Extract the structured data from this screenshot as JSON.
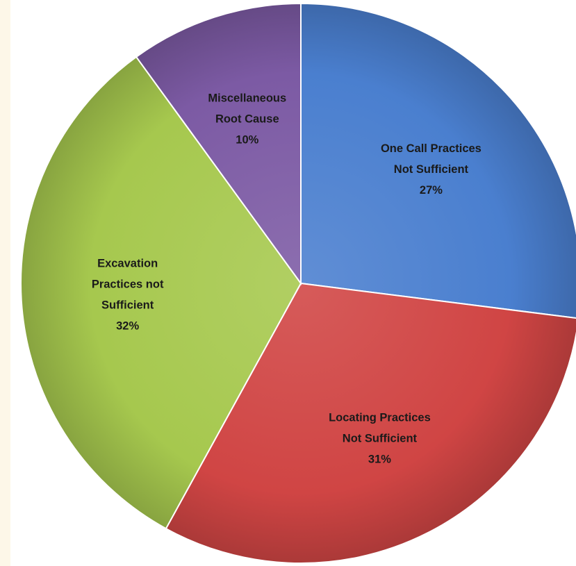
{
  "chart_data": {
    "type": "pie",
    "title": "",
    "slices": [
      {
        "label_lines": [
          "One Call Practices",
          "Not Sufficient",
          "27%"
        ],
        "value": 27,
        "color": "#4a7fcf"
      },
      {
        "label_lines": [
          "Locating Practices",
          "Not Sufficient",
          "31%"
        ],
        "value": 31,
        "color": "#d04544"
      },
      {
        "label_lines": [
          "Excavation",
          "Practices not",
          "Sufficient",
          "32%"
        ],
        "value": 32,
        "color": "#a6c84e"
      },
      {
        "label_lines": [
          "Miscellaneous",
          "Root Cause",
          "10%"
        ],
        "value": 10,
        "color": "#7c5aa4"
      }
    ],
    "start_angle_deg": 0,
    "direction": "clockwise",
    "legend": "none"
  }
}
